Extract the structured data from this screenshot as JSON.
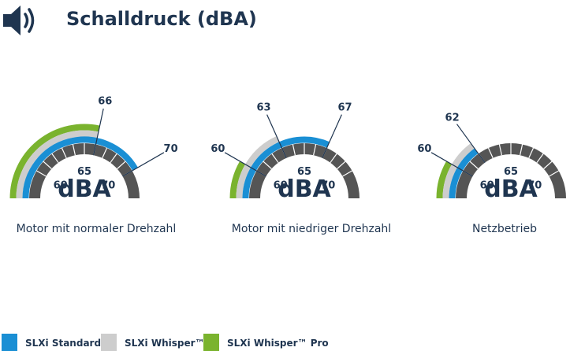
{
  "title": "Schalldruck (dBA)",
  "colors": {
    "text": "#1f3550",
    "dial": "#555555",
    "standard": "#1a8fd4",
    "whisper": "#cdcdcd",
    "whisper_pro": "#7ab32e"
  },
  "chart_data": {
    "type": "gauge",
    "unit": "dBA",
    "scale_ticks": [
      "60",
      "65",
      "70"
    ],
    "series": [
      {
        "name": "SLXi Standard",
        "color": "#1a8fd4"
      },
      {
        "name": "SLXi Whisper™",
        "color": "#cdcdcd"
      },
      {
        "name": "SLXi Whisper™ Pro",
        "color": "#7ab32e"
      }
    ],
    "gauges": [
      {
        "label": "Motor mit normaler Drehzahl",
        "values": {
          "SLXi Standard": 70,
          "SLXi Whisper™": 66,
          "SLXi Whisper™ Pro": 66
        },
        "callouts": [
          "66",
          "70"
        ]
      },
      {
        "label": "Motor mit niedriger Drehzahl",
        "values": {
          "SLXi Standard": 67,
          "SLXi Whisper™": 63,
          "SLXi Whisper™ Pro": 60
        },
        "callouts": [
          "60",
          "63",
          "67"
        ]
      },
      {
        "label": "Netzbetrieb",
        "values": {
          "SLXi Standard": 62,
          "SLXi Whisper™": 62,
          "SLXi Whisper™ Pro": 60
        },
        "callouts": [
          "60",
          "62"
        ]
      }
    ]
  },
  "legend": [
    "SLXi Standard",
    "SLXi Whisper™",
    "SLXi Whisper™ Pro"
  ]
}
